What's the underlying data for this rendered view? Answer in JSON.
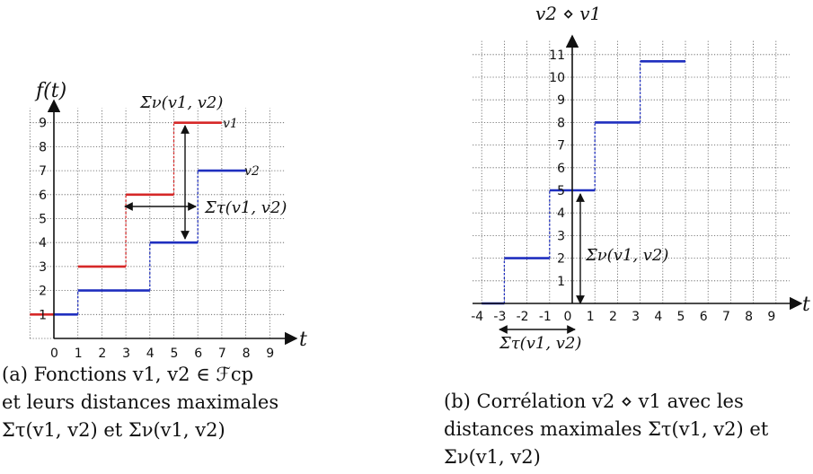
{
  "charts": {
    "a": {
      "y_axis_title": "f(t)",
      "x_axis_title": "t",
      "x_ticks": [
        "0",
        "1",
        "2",
        "3",
        "4",
        "5",
        "6",
        "7",
        "8",
        "9"
      ],
      "y_ticks": [
        "1",
        "2",
        "3",
        "4",
        "5",
        "6",
        "7",
        "8",
        "9"
      ],
      "series_labels": {
        "v1": "v1",
        "v2": "v2"
      },
      "annotations": {
        "sigma_nu": "Σν(v1, v2)",
        "sigma_tau": "Στ(v1, v2)"
      }
    },
    "b": {
      "y_axis_title": "v2 ⋄ v1",
      "x_axis_title": "t",
      "x_ticks": [
        "-4",
        "-3",
        "-2",
        "-1",
        "0",
        "1",
        "2",
        "3",
        "4",
        "5",
        "6",
        "7",
        "8",
        "9"
      ],
      "y_ticks": [
        "1",
        "2",
        "3",
        "4",
        "5",
        "6",
        "7",
        "8",
        "9",
        "10",
        "11"
      ],
      "annotations": {
        "sigma_nu": "Σν(v1, v2)",
        "sigma_tau": "Στ(v1, v2)"
      }
    }
  },
  "captions": {
    "a": [
      "(a) Fonctions v1, v2 ∈ ℱcp",
      "et leurs distances maximales",
      "Στ(v1, v2) et Σν(v1, v2)"
    ],
    "b": [
      "(b) Corrélation v2 ⋄ v1 avec les",
      "distances maximales Στ(v1, v2) et",
      "Σν(v1, v2)"
    ]
  },
  "chart_data": [
    {
      "type": "line",
      "subtype": "step",
      "title": "",
      "xlabel": "t",
      "ylabel": "f(t)",
      "xlim": [
        0,
        9
      ],
      "ylim": [
        0,
        9
      ],
      "grid": true,
      "series": [
        {
          "name": "v1",
          "color": "#d62828",
          "segments": [
            [
              -1,
              0,
              1
            ],
            [
              1,
              3,
              3
            ],
            [
              3,
              5,
              6
            ],
            [
              5,
              7,
              9
            ]
          ]
        },
        {
          "name": "v2",
          "color": "#1f2fbf",
          "segments": [
            [
              0,
              1,
              1
            ],
            [
              1,
              4,
              2
            ],
            [
              4,
              6,
              4
            ],
            [
              6,
              8,
              7
            ]
          ]
        }
      ],
      "annotations": [
        {
          "label": "Σν(v1, v2)",
          "from": [
            6,
            4
          ],
          "to": [
            6,
            9
          ]
        },
        {
          "label": "Στ(v1, v2)",
          "from": [
            3,
            5.5
          ],
          "to": [
            6,
            5.5
          ]
        }
      ]
    },
    {
      "type": "line",
      "subtype": "step",
      "title": "",
      "xlabel": "t",
      "ylabel": "v2 ⋄ v1",
      "xlim": [
        -4,
        9
      ],
      "ylim": [
        0,
        11
      ],
      "grid": true,
      "series": [
        {
          "color": "#1f2fbf",
          "segments": [
            [
              -4,
              -3,
              0
            ],
            [
              -3,
              -1,
              2
            ],
            [
              -1,
              0,
              5
            ],
            [
              0,
              1,
              5
            ],
            [
              1,
              3,
              8
            ],
            [
              3,
              5,
              10.7
            ]
          ]
        }
      ],
      "annotations": [
        {
          "label": "Σν(v1, v2)",
          "from": [
            0,
            0
          ],
          "to": [
            0,
            5
          ]
        },
        {
          "label": "Στ(v1, v2)",
          "from": [
            -3,
            -0.5
          ],
          "to": [
            0,
            -0.5
          ]
        }
      ]
    }
  ]
}
